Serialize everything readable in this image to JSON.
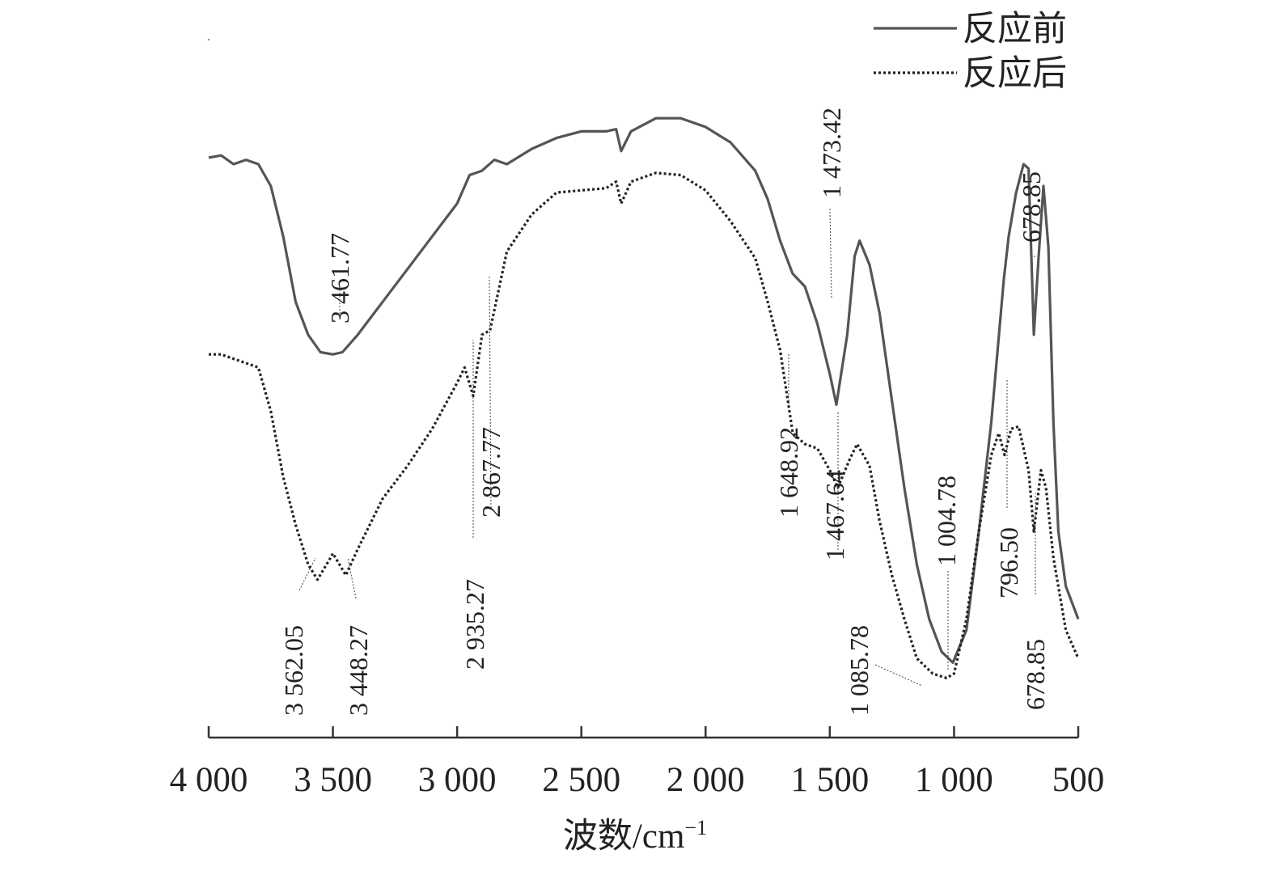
{
  "chart_data": {
    "type": "line",
    "xlabel": "波数/cm",
    "xlabel_sup": "−1",
    "xlim": [
      4000,
      500
    ],
    "x_ticks": [
      4000,
      3500,
      3000,
      2500,
      2000,
      1500,
      1000,
      500
    ],
    "x_tick_labels": [
      "4 000",
      "3 500",
      "3 000",
      "2 500",
      "2 000",
      "1 500",
      "1 000",
      "500"
    ],
    "ylabel": "",
    "y_axis_visible": false,
    "grid": false,
    "legend_position": "top-right",
    "series": [
      {
        "name": "反应前",
        "style": "solid",
        "color": "#555555",
        "points": [
          [
            4000,
            2.21
          ],
          [
            3950,
            2.22
          ],
          [
            3900,
            2.18
          ],
          [
            3850,
            2.2
          ],
          [
            3800,
            2.18
          ],
          [
            3750,
            2.08
          ],
          [
            3700,
            1.85
          ],
          [
            3650,
            1.55
          ],
          [
            3600,
            1.4
          ],
          [
            3550,
            1.32
          ],
          [
            3500,
            1.31
          ],
          [
            3461.77,
            1.32
          ],
          [
            3400,
            1.4
          ],
          [
            3300,
            1.55
          ],
          [
            3200,
            1.7
          ],
          [
            3100,
            1.85
          ],
          [
            3000,
            2.0
          ],
          [
            2950,
            2.13
          ],
          [
            2900,
            2.15
          ],
          [
            2850,
            2.2
          ],
          [
            2800,
            2.18
          ],
          [
            2700,
            2.25
          ],
          [
            2600,
            2.3
          ],
          [
            2500,
            2.33
          ],
          [
            2400,
            2.33
          ],
          [
            2360,
            2.34
          ],
          [
            2340,
            2.24
          ],
          [
            2300,
            2.33
          ],
          [
            2200,
            2.39
          ],
          [
            2100,
            2.39
          ],
          [
            2000,
            2.35
          ],
          [
            1900,
            2.28
          ],
          [
            1800,
            2.15
          ],
          [
            1750,
            2.02
          ],
          [
            1700,
            1.83
          ],
          [
            1650,
            1.68
          ],
          [
            1600,
            1.62
          ],
          [
            1550,
            1.45
          ],
          [
            1500,
            1.22
          ],
          [
            1473.42,
            1.08
          ],
          [
            1430,
            1.4
          ],
          [
            1400,
            1.76
          ],
          [
            1380,
            1.83
          ],
          [
            1340,
            1.72
          ],
          [
            1300,
            1.5
          ],
          [
            1250,
            1.1
          ],
          [
            1200,
            0.7
          ],
          [
            1150,
            0.35
          ],
          [
            1100,
            0.1
          ],
          [
            1050,
            -0.05
          ],
          [
            1004.78,
            -0.1
          ],
          [
            950,
            0.05
          ],
          [
            900,
            0.5
          ],
          [
            850,
            1.0
          ],
          [
            800,
            1.65
          ],
          [
            780,
            1.85
          ],
          [
            750,
            2.05
          ],
          [
            720,
            2.18
          ],
          [
            700,
            2.16
          ],
          [
            678.85,
            1.4
          ],
          [
            660,
            1.75
          ],
          [
            640,
            2.08
          ],
          [
            620,
            1.8
          ],
          [
            600,
            1.0
          ],
          [
            580,
            0.5
          ],
          [
            550,
            0.25
          ],
          [
            500,
            0.1
          ]
        ]
      },
      {
        "name": "反应后",
        "style": "dotted",
        "color": "#222222",
        "points": [
          [
            4000,
            1.31
          ],
          [
            3950,
            1.31
          ],
          [
            3900,
            1.29
          ],
          [
            3850,
            1.27
          ],
          [
            3800,
            1.25
          ],
          [
            3750,
            1.05
          ],
          [
            3700,
            0.75
          ],
          [
            3650,
            0.53
          ],
          [
            3600,
            0.35
          ],
          [
            3562.05,
            0.28
          ],
          [
            3520,
            0.36
          ],
          [
            3500,
            0.4
          ],
          [
            3448.27,
            0.3
          ],
          [
            3400,
            0.42
          ],
          [
            3300,
            0.65
          ],
          [
            3200,
            0.8
          ],
          [
            3100,
            0.97
          ],
          [
            3000,
            1.18
          ],
          [
            2970,
            1.25
          ],
          [
            2935.27,
            1.12
          ],
          [
            2900,
            1.4
          ],
          [
            2867.77,
            1.42
          ],
          [
            2800,
            1.78
          ],
          [
            2700,
            1.95
          ],
          [
            2600,
            2.05
          ],
          [
            2500,
            2.06
          ],
          [
            2400,
            2.07
          ],
          [
            2360,
            2.1
          ],
          [
            2340,
            2.0
          ],
          [
            2300,
            2.1
          ],
          [
            2200,
            2.14
          ],
          [
            2100,
            2.13
          ],
          [
            2000,
            2.06
          ],
          [
            1900,
            1.92
          ],
          [
            1800,
            1.75
          ],
          [
            1750,
            1.55
          ],
          [
            1700,
            1.33
          ],
          [
            1648.92,
            0.95
          ],
          [
            1600,
            0.9
          ],
          [
            1550,
            0.88
          ],
          [
            1500,
            0.78
          ],
          [
            1467.64,
            0.7
          ],
          [
            1420,
            0.83
          ],
          [
            1390,
            0.9
          ],
          [
            1340,
            0.8
          ],
          [
            1300,
            0.55
          ],
          [
            1250,
            0.3
          ],
          [
            1200,
            0.1
          ],
          [
            1150,
            -0.08
          ],
          [
            1085.78,
            -0.15
          ],
          [
            1030,
            -0.17
          ],
          [
            1000,
            -0.15
          ],
          [
            950,
            0.1
          ],
          [
            900,
            0.5
          ],
          [
            850,
            0.85
          ],
          [
            820,
            0.95
          ],
          [
            796.5,
            0.85
          ],
          [
            770,
            0.97
          ],
          [
            740,
            0.98
          ],
          [
            700,
            0.78
          ],
          [
            678.85,
            0.5
          ],
          [
            650,
            0.78
          ],
          [
            630,
            0.7
          ],
          [
            600,
            0.38
          ],
          [
            550,
            0.05
          ],
          [
            500,
            -0.08
          ]
        ]
      }
    ],
    "annotations": [
      {
        "text": "1 473.42",
        "series": "反应前",
        "x": 1473.42
      },
      {
        "text": "3 461.77",
        "series": "反应前",
        "x": 3461.77
      },
      {
        "text": "678.85",
        "series": "反应前",
        "x": 678.85
      },
      {
        "text": "1 004.78",
        "series": "反应前",
        "x": 1004.78
      },
      {
        "text": "3 562.05",
        "series": "反应后",
        "x": 3562.05
      },
      {
        "text": "3 448.27",
        "series": "反应后",
        "x": 3448.27
      },
      {
        "text": "2 935.27",
        "series": "反应后",
        "x": 2935.27
      },
      {
        "text": "2 867.77",
        "series": "反应后",
        "x": 2867.77
      },
      {
        "text": "1 648.92",
        "series": "反应后",
        "x": 1648.92
      },
      {
        "text": "1 467.64",
        "series": "反应后",
        "x": 1467.64
      },
      {
        "text": "1 085.78",
        "series": "反应后",
        "x": 1085.78
      },
      {
        "text": "796.50",
        "series": "反应后",
        "x": 796.5
      },
      {
        "text": "678.85",
        "series": "反应后",
        "x": 678.85
      }
    ]
  }
}
